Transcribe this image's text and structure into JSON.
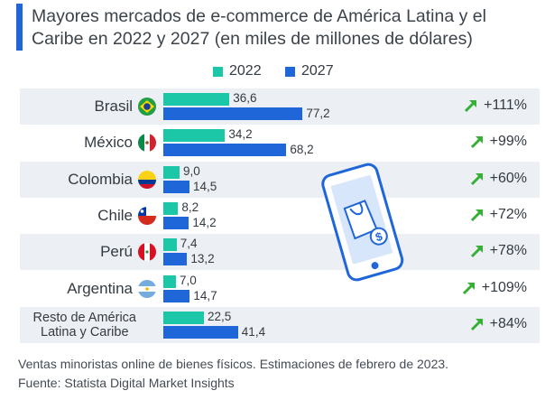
{
  "title": "Mayores mercados de e-commerce de América Latina y el Caribe en 2022 y 2027 (en miles de millones de dólares)",
  "colors": {
    "y2022": "#1cc7a7",
    "y2027": "#1f66d8",
    "arrow": "#35b035",
    "accent": "#1f66d8",
    "band": "#ecf0f4"
  },
  "chart_data": {
    "type": "bar",
    "orientation": "horizontal",
    "title": "Mayores mercados de e-commerce de América Latina y el Caribe en 2022 y 2027 (en miles de millones de dólares)",
    "categories": [
      "Brasil",
      "México",
      "Colombia",
      "Chile",
      "Perú",
      "Argentina",
      "Resto de América Latina y Caribe"
    ],
    "category_lines": [
      [
        "Brasil"
      ],
      [
        "México"
      ],
      [
        "Colombia"
      ],
      [
        "Chile"
      ],
      [
        "Perú"
      ],
      [
        "Argentina"
      ],
      [
        "Resto de América",
        "Latina y Caribe"
      ]
    ],
    "flag_icons": [
      "brazil-flag-icon",
      "mexico-flag-icon",
      "colombia-flag-icon",
      "chile-flag-icon",
      "peru-flag-icon",
      "argentina-flag-icon",
      ""
    ],
    "series": [
      {
        "name": "2022",
        "values": [
          36.6,
          34.2,
          9.0,
          8.2,
          7.4,
          7.0,
          22.5
        ]
      },
      {
        "name": "2027",
        "values": [
          77.2,
          68.2,
          14.5,
          14.2,
          13.2,
          14.7,
          41.4
        ]
      }
    ],
    "value_labels": {
      "2022": [
        "36,6",
        "34,2",
        "9,0",
        "8,2",
        "7,4",
        "7,0",
        "22,5"
      ],
      "2027": [
        "77,2",
        "68,2",
        "14,5",
        "14,2",
        "13,2",
        "14,7",
        "41,4"
      ]
    },
    "growth": [
      "+111%",
      "+99%",
      "+60%",
      "+72%",
      "+78%",
      "+109%",
      "+84%"
    ],
    "legend": [
      "2022",
      "2027"
    ],
    "legend_position": "top",
    "xlim": [
      0,
      80
    ],
    "grid": false
  },
  "footer": {
    "note": "Ventas minoristas online de bienes físicos. Estimaciones de febrero de 2023.",
    "source": "Fuente: Statista Digital Market Insights"
  }
}
